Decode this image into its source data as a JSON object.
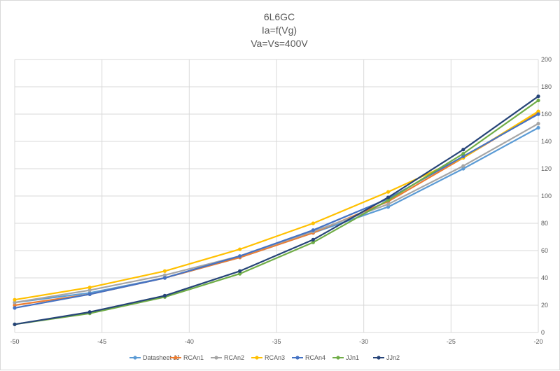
{
  "chart_data": {
    "type": "line",
    "title_lines": [
      "6L6GC",
      "Ia=f(Vg)",
      "Va=Vs=400V"
    ],
    "xlabel": "",
    "ylabel": "",
    "xlim": [
      -50,
      -20
    ],
    "ylim": [
      0,
      200
    ],
    "x_ticks": [
      -50,
      -45,
      -40,
      -35,
      -30,
      -25,
      -20
    ],
    "y_ticks": [
      0,
      20,
      40,
      60,
      80,
      100,
      120,
      140,
      160,
      180,
      200
    ],
    "y_axis_side": "right",
    "grid": true,
    "legend_position": "bottom",
    "x": [
      -50,
      -45.7,
      -41.4,
      -37.1,
      -32.9,
      -28.6,
      -24.3,
      -20
    ],
    "series": [
      {
        "name": "Datasheet JJ",
        "color": "#5b9bd5",
        "values": [
          22,
          29,
          40,
          55,
          73,
          92,
          120,
          150
        ]
      },
      {
        "name": "RCAn1",
        "color": "#ed7d31",
        "values": [
          20,
          28,
          40,
          55,
          73,
          96,
          128,
          161
        ]
      },
      {
        "name": "RCAn2",
        "color": "#a5a5a5",
        "values": [
          22,
          31,
          42,
          56,
          74,
          94,
          122,
          153
        ]
      },
      {
        "name": "RCAn3",
        "color": "#ffc000",
        "values": [
          24,
          33,
          45,
          61,
          80,
          103,
          128,
          162
        ]
      },
      {
        "name": "RCAn4",
        "color": "#4472c4",
        "values": [
          18,
          28,
          40,
          56,
          75,
          98,
          129,
          160
        ]
      },
      {
        "name": "JJn1",
        "color": "#70ad47",
        "values": [
          6,
          14,
          26,
          43,
          66,
          97,
          131,
          170
        ]
      },
      {
        "name": "JJn2",
        "color": "#264478",
        "values": [
          6,
          15,
          27,
          45,
          68,
          99,
          134,
          173
        ]
      }
    ]
  }
}
